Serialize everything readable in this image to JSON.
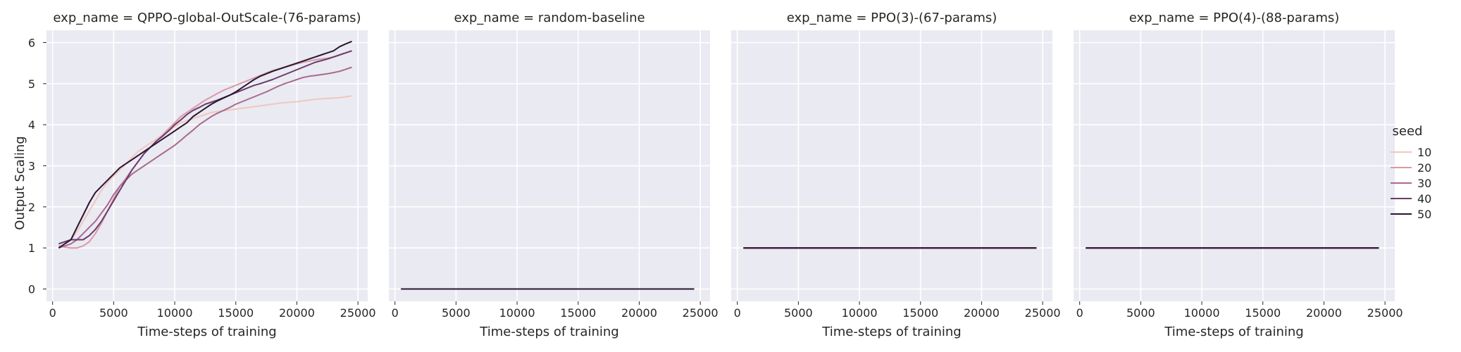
{
  "chart_data": {
    "type": "line",
    "grid": true,
    "legend_placement": "right",
    "legend": {
      "title": "seed",
      "entries": [
        {
          "label": "10",
          "color": "#f0c7bd"
        },
        {
          "label": "20",
          "color": "#d99aa6"
        },
        {
          "label": "30",
          "color": "#a86a8f"
        },
        {
          "label": "40",
          "color": "#6a3b6b"
        },
        {
          "label": "50",
          "color": "#2b1530"
        }
      ]
    },
    "ylabel": "Output Scaling",
    "ylim": [
      -0.3,
      6.3
    ],
    "yticks": [
      0,
      1,
      2,
      3,
      4,
      5,
      6
    ],
    "xlabel": "Time-steps of training",
    "xlim": [
      -500,
      25800
    ],
    "xticks": [
      0,
      5000,
      10000,
      15000,
      20000,
      25000
    ],
    "panels": [
      {
        "title": "exp_name = QPPO-global-OutScale-(76-params)",
        "x": [
          500,
          1000,
          1500,
          2000,
          2500,
          3000,
          3500,
          4000,
          4500,
          5000,
          5500,
          6000,
          6500,
          7000,
          7500,
          8000,
          8500,
          9000,
          9500,
          10000,
          10500,
          11000,
          11500,
          12000,
          12500,
          13000,
          13500,
          14000,
          14500,
          15000,
          15500,
          16000,
          16500,
          17000,
          17500,
          18000,
          18500,
          19000,
          19500,
          20000,
          20500,
          21000,
          21500,
          22000,
          22500,
          23000,
          23500,
          24000,
          24500
        ],
        "series": [
          {
            "name": "10",
            "values": [
              1.0,
              1.1,
              1.2,
              1.4,
              1.65,
              1.9,
              2.15,
              2.4,
              2.6,
              2.75,
              2.9,
              3.05,
              3.2,
              3.35,
              3.45,
              3.55,
              3.65,
              3.75,
              3.85,
              3.95,
              4.05,
              4.1,
              4.15,
              4.2,
              4.25,
              4.3,
              4.32,
              4.34,
              4.36,
              4.38,
              4.4,
              4.42,
              4.44,
              4.46,
              4.48,
              4.5,
              4.52,
              4.54,
              4.55,
              4.56,
              4.58,
              4.6,
              4.62,
              4.63,
              4.64,
              4.65,
              4.66,
              4.68,
              4.7
            ]
          },
          {
            "name": "20",
            "values": [
              1.05,
              1.02,
              1.0,
              1.0,
              1.05,
              1.15,
              1.35,
              1.6,
              1.9,
              2.2,
              2.5,
              2.7,
              2.9,
              3.1,
              3.3,
              3.45,
              3.6,
              3.75,
              3.9,
              4.05,
              4.2,
              4.3,
              4.4,
              4.5,
              4.6,
              4.68,
              4.76,
              4.84,
              4.9,
              4.96,
              5.02,
              5.08,
              5.14,
              5.2,
              5.26,
              5.32,
              5.36,
              5.4,
              5.44,
              5.48,
              5.52,
              5.55,
              5.58,
              5.6,
              5.62,
              5.65,
              5.7,
              5.75,
              5.8
            ]
          },
          {
            "name": "30",
            "values": [
              1.0,
              1.05,
              1.1,
              1.2,
              1.35,
              1.5,
              1.65,
              1.85,
              2.05,
              2.3,
              2.5,
              2.65,
              2.8,
              2.9,
              3.0,
              3.1,
              3.2,
              3.3,
              3.4,
              3.5,
              3.62,
              3.75,
              3.87,
              4.0,
              4.1,
              4.2,
              4.28,
              4.35,
              4.42,
              4.5,
              4.56,
              4.62,
              4.68,
              4.74,
              4.8,
              4.87,
              4.94,
              5.0,
              5.05,
              5.1,
              5.15,
              5.18,
              5.2,
              5.22,
              5.24,
              5.27,
              5.3,
              5.35,
              5.4
            ]
          },
          {
            "name": "40",
            "values": [
              1.1,
              1.15,
              1.2,
              1.2,
              1.2,
              1.3,
              1.45,
              1.65,
              1.9,
              2.15,
              2.4,
              2.65,
              2.9,
              3.1,
              3.3,
              3.45,
              3.6,
              3.72,
              3.85,
              4.0,
              4.12,
              4.25,
              4.35,
              4.42,
              4.5,
              4.55,
              4.6,
              4.66,
              4.72,
              4.78,
              4.84,
              4.9,
              4.96,
              5.0,
              5.05,
              5.1,
              5.16,
              5.22,
              5.28,
              5.34,
              5.4,
              5.46,
              5.52,
              5.56,
              5.6,
              5.65,
              5.7,
              5.75,
              5.8
            ]
          },
          {
            "name": "50",
            "values": [
              1.0,
              1.1,
              1.2,
              1.5,
              1.8,
              2.1,
              2.35,
              2.5,
              2.65,
              2.8,
              2.95,
              3.05,
              3.15,
              3.25,
              3.35,
              3.45,
              3.55,
              3.65,
              3.75,
              3.85,
              3.95,
              4.05,
              4.2,
              4.3,
              4.4,
              4.5,
              4.58,
              4.65,
              4.72,
              4.8,
              4.9,
              5.0,
              5.1,
              5.18,
              5.24,
              5.3,
              5.35,
              5.4,
              5.45,
              5.5,
              5.55,
              5.6,
              5.65,
              5.7,
              5.75,
              5.8,
              5.9,
              5.97,
              6.03
            ]
          }
        ]
      },
      {
        "title": "exp_name = random-baseline",
        "x": [
          500,
          24500
        ],
        "series": [
          {
            "name": "10",
            "values": [
              0,
              0
            ]
          },
          {
            "name": "20",
            "values": [
              0,
              0
            ]
          },
          {
            "name": "30",
            "values": [
              0,
              0
            ]
          },
          {
            "name": "40",
            "values": [
              0,
              0
            ]
          },
          {
            "name": "50",
            "values": [
              0,
              0
            ]
          }
        ]
      },
      {
        "title": "exp_name = PPO(3)-(67-params)",
        "x": [
          500,
          24500
        ],
        "series": [
          {
            "name": "10",
            "values": [
              1,
              1
            ]
          },
          {
            "name": "20",
            "values": [
              1,
              1
            ]
          },
          {
            "name": "30",
            "values": [
              1,
              1
            ]
          },
          {
            "name": "40",
            "values": [
              1,
              1
            ]
          },
          {
            "name": "50",
            "values": [
              1,
              1
            ]
          }
        ]
      },
      {
        "title": "exp_name = PPO(4)-(88-params)",
        "x": [
          500,
          24500
        ],
        "series": [
          {
            "name": "10",
            "values": [
              1,
              1
            ]
          },
          {
            "name": "20",
            "values": [
              1,
              1
            ]
          },
          {
            "name": "30",
            "values": [
              1,
              1
            ]
          },
          {
            "name": "40",
            "values": [
              1,
              1
            ]
          },
          {
            "name": "50",
            "values": [
              1,
              1
            ]
          }
        ]
      }
    ]
  }
}
